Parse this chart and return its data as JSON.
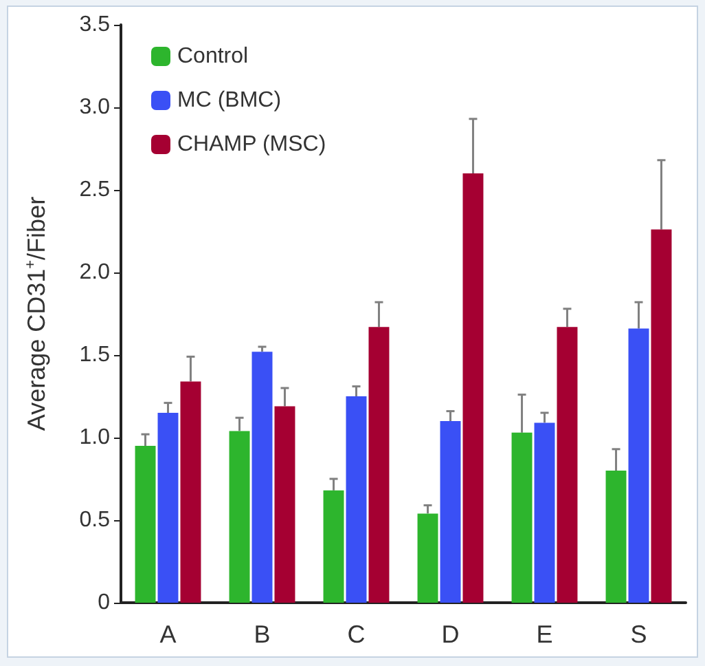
{
  "chart_data": {
    "type": "bar",
    "ylabel": "Average CD31$^{+}$/Fiber",
    "categories": [
      "A",
      "B",
      "C",
      "D",
      "E",
      "S"
    ],
    "series": [
      {
        "name": "Control",
        "color": "#2db52d",
        "values": [
          0.95,
          1.04,
          0.68,
          0.54,
          1.03,
          0.8
        ],
        "errors": [
          [
            0.95,
            1.02
          ],
          [
            1.04,
            1.12
          ],
          [
            0.68,
            0.75
          ],
          [
            0.54,
            0.59
          ],
          [
            1.03,
            1.26
          ],
          [
            0.8,
            0.93
          ]
        ]
      },
      {
        "name": "MC (BMC)",
        "color": "#3a50f5",
        "values": [
          1.15,
          1.52,
          1.25,
          1.1,
          1.09,
          1.66
        ],
        "errors": [
          [
            1.15,
            1.21
          ],
          [
            1.52,
            1.55
          ],
          [
            1.25,
            1.31
          ],
          [
            1.1,
            1.16
          ],
          [
            1.09,
            1.15
          ],
          [
            1.66,
            1.82
          ]
        ]
      },
      {
        "name": "CHAMP (MSC)",
        "color": "#a50032",
        "values": [
          1.34,
          1.19,
          1.67,
          2.6,
          1.67,
          2.26
        ],
        "errors": [
          [
            1.34,
            1.49
          ],
          [
            1.19,
            1.3
          ],
          [
            1.67,
            1.82
          ],
          [
            2.6,
            2.93
          ],
          [
            1.67,
            1.78
          ],
          [
            2.26,
            2.68
          ]
        ]
      }
    ],
    "ylim": [
      0,
      3.5
    ],
    "yticks": [
      {
        "value": 0,
        "label": "0"
      },
      {
        "value": 0.5,
        "label": "0.5"
      },
      {
        "value": 1,
        "label": "1.0"
      },
      {
        "value": 1.5,
        "label": "1.5"
      },
      {
        "value": 2,
        "label": "2.0"
      },
      {
        "value": 2.5,
        "label": "2.5"
      },
      {
        "value": 3,
        "label": "3.0"
      },
      {
        "value": 3.5,
        "label": "3.5"
      }
    ],
    "grid": false,
    "legend": "top left"
  }
}
